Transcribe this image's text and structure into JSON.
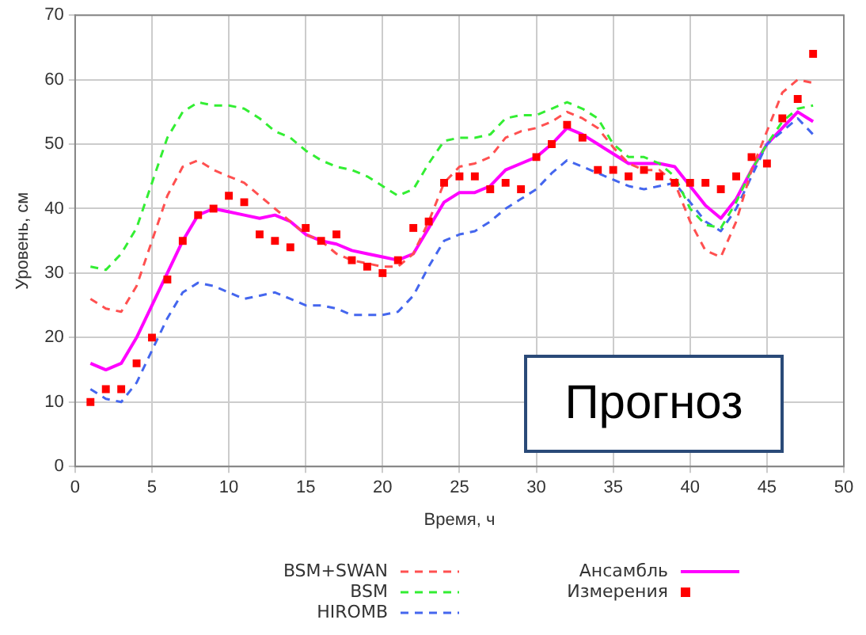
{
  "chart_data": {
    "type": "line",
    "xlabel": "Время, ч",
    "ylabel": "Уровень, см",
    "x": [
      1,
      2,
      3,
      4,
      5,
      6,
      7,
      8,
      9,
      10,
      11,
      12,
      13,
      14,
      15,
      16,
      17,
      18,
      19,
      20,
      21,
      22,
      23,
      24,
      25,
      26,
      27,
      28,
      29,
      30,
      31,
      32,
      33,
      34,
      35,
      36,
      37,
      38,
      39,
      40,
      41,
      42,
      43,
      44,
      45,
      46,
      47,
      48
    ],
    "xlim": [
      0,
      50
    ],
    "xticks": [
      0,
      5,
      10,
      15,
      20,
      25,
      30,
      35,
      40,
      45,
      50
    ],
    "ylim": [
      0,
      70
    ],
    "yticks": [
      0,
      10,
      20,
      30,
      40,
      50,
      60,
      70
    ],
    "grid": true,
    "legend": "bottom",
    "marker": "none",
    "annotations": [
      "Прогноз"
    ],
    "series": [
      {
        "name": "BSM+SWAN",
        "color": "#ff5050",
        "line_style": "dashed",
        "values": [
          26,
          24.5,
          24,
          28,
          35,
          42,
          46.5,
          47.5,
          46,
          45,
          44,
          42,
          40,
          38,
          36,
          35,
          33,
          32,
          31.5,
          31,
          31,
          33,
          38,
          44,
          46.5,
          47,
          48,
          51,
          52,
          52.5,
          53.5,
          55,
          54,
          52.5,
          49.5,
          47,
          46,
          46,
          44,
          38,
          33.5,
          32.5,
          38,
          46,
          52,
          58,
          60,
          59.5
        ]
      },
      {
        "name": "BSM",
        "color": "#33ee33",
        "line_style": "dashed",
        "values": [
          31,
          30.5,
          33,
          37,
          44,
          51,
          55,
          56.5,
          56,
          56,
          55.5,
          54,
          52,
          51,
          49,
          47.5,
          46.5,
          46,
          45,
          43.5,
          42,
          43,
          47,
          50.5,
          51,
          51,
          51.5,
          54,
          54.5,
          54.5,
          55.5,
          56.5,
          55.5,
          54,
          50,
          48,
          48,
          47,
          45,
          40,
          37.5,
          37,
          41,
          46,
          50,
          53.5,
          55.5,
          56
        ]
      },
      {
        "name": "HIROMB",
        "color": "#4466ee",
        "line_style": "dashed",
        "values": [
          12,
          10.5,
          10,
          13,
          18,
          23,
          27,
          28.5,
          28,
          27,
          26,
          26.5,
          27,
          26,
          25,
          25,
          24.5,
          23.5,
          23.5,
          23.5,
          24,
          26.5,
          31,
          35,
          36,
          36.5,
          38,
          40,
          41.5,
          43,
          45.5,
          47.5,
          46.5,
          45.5,
          44.5,
          43.5,
          43,
          43.5,
          44,
          41,
          38,
          36.5,
          40,
          45,
          50,
          52,
          54,
          51.5
        ]
      },
      {
        "name": "Ансамбль",
        "color": "#ff00ff",
        "line_style": "solid",
        "values": [
          16,
          15,
          16,
          20,
          25,
          30,
          35,
          39,
          40,
          39.5,
          39,
          38.5,
          39,
          38,
          36,
          35,
          34.5,
          33.5,
          33,
          32.5,
          32,
          33,
          37,
          41,
          42.5,
          42.5,
          43.5,
          46,
          47,
          48,
          50,
          52.5,
          51.5,
          50,
          48.5,
          47,
          47,
          47,
          46.5,
          43.5,
          40.5,
          38.5,
          41.5,
          46,
          50,
          52.5,
          55,
          53.5
        ]
      },
      {
        "name": "Измерения",
        "type": "scatter",
        "marker": "square",
        "color": "#ff0000",
        "values": [
          10,
          12,
          12,
          16,
          20,
          29,
          35,
          39,
          40,
          42,
          41,
          36,
          35,
          34,
          37,
          35,
          36,
          32,
          31,
          30,
          32,
          37,
          38,
          44,
          45,
          45,
          43,
          44,
          43,
          48,
          50,
          53,
          51,
          46,
          46,
          45,
          46,
          45,
          44,
          44,
          44,
          43,
          45,
          48,
          47,
          54,
          57,
          64
        ]
      }
    ]
  }
}
